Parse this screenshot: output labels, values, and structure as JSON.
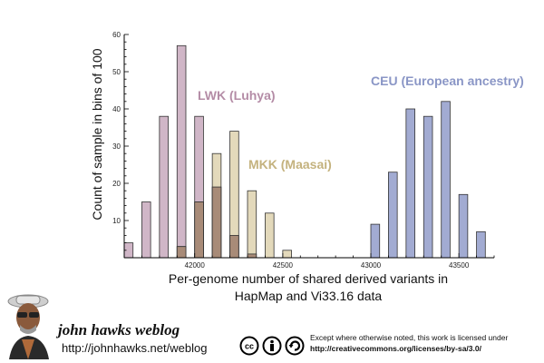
{
  "chart_data": {
    "type": "bar",
    "ylabel": "Count of sample in bins of 100",
    "xlabel_line1": "Per-genome number of shared derived variants in",
    "xlabel_line2": "HapMap and Vi33.16 data",
    "xlim": [
      41600,
      43700
    ],
    "ylim": [
      0,
      60
    ],
    "bin_width": 50,
    "x_ticks": [
      42000,
      42500,
      43000,
      43500
    ],
    "y_ticks": [
      10,
      20,
      30,
      40,
      50,
      60
    ],
    "grid": false,
    "series": [
      {
        "name": "LWK (Luhya)",
        "color": "#b48ca6",
        "fill": "#c8a9bd",
        "bins": [
          {
            "x": 41600,
            "count": 4
          },
          {
            "x": 41700,
            "count": 15
          },
          {
            "x": 41800,
            "count": 38
          },
          {
            "x": 41900,
            "count": 57
          },
          {
            "x": 42000,
            "count": 38
          },
          {
            "x": 42100,
            "count": 19
          },
          {
            "x": 42200,
            "count": 6
          },
          {
            "x": 42300,
            "count": 1
          }
        ]
      },
      {
        "name": "MKK (Maasai)",
        "color": "#c9bb8e",
        "fill": "#d9cca4",
        "bins": [
          {
            "x": 41900,
            "count": 3
          },
          {
            "x": 42000,
            "count": 15
          },
          {
            "x": 42100,
            "count": 28
          },
          {
            "x": 42200,
            "count": 34
          },
          {
            "x": 42300,
            "count": 18
          },
          {
            "x": 42400,
            "count": 12
          },
          {
            "x": 42500,
            "count": 2
          }
        ]
      },
      {
        "name": "CEU (European ancestry)",
        "color": "#8a96c6",
        "fill": "#9da7d0",
        "bins": [
          {
            "x": 43000,
            "count": 9
          },
          {
            "x": 43100,
            "count": 23
          },
          {
            "x": 43200,
            "count": 40
          },
          {
            "x": 43300,
            "count": 38
          },
          {
            "x": 43400,
            "count": 42
          },
          {
            "x": 43500,
            "count": 17
          },
          {
            "x": 43600,
            "count": 7
          }
        ]
      }
    ]
  },
  "footer": {
    "brand": "john hawks weblog",
    "brand_url": "http://johnhawks.net/weblog",
    "license_line1": "Except where otherwise noted, this work is licensed under",
    "license_url": "http://creativecommons.org/licenses/by-sa/3.0/"
  },
  "colors": {
    "overlap_lwk_mkk": "#a88b78",
    "axis": "#000000"
  }
}
